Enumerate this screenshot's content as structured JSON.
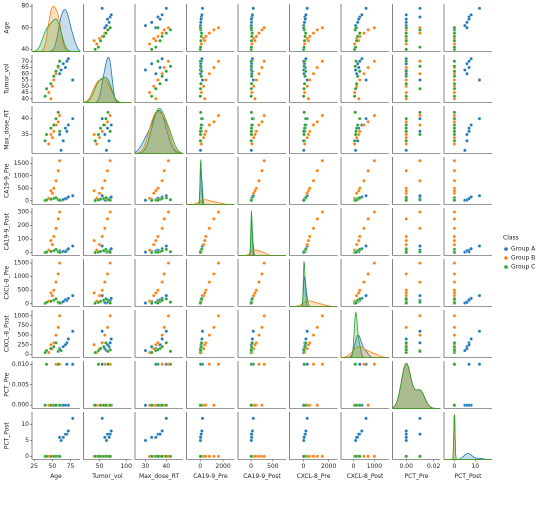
{
  "chart_data": {
    "type": "pairplot",
    "variables": [
      "Age",
      "Tumor_vol",
      "Max_dose_RT",
      "CA19-9_Pre",
      "CA19-9_Post",
      "CXCL-8_Pre",
      "CXCL-8_Post",
      "PCT_Pre",
      "PCT_Post"
    ],
    "axes": [
      {
        "xlim": [
          22,
          88
        ],
        "xticks": [
          25,
          50,
          75
        ],
        "ylim": [
          38,
          82
        ],
        "yticks": [
          40,
          60,
          80
        ]
      },
      {
        "xlim": [
          20,
          110
        ],
        "xticks": [
          50,
          100
        ],
        "ylim": [
          37,
          75
        ],
        "yticks": [
          40,
          45,
          50,
          55,
          60,
          65,
          70
        ]
      },
      {
        "xlim": [
          25,
          48
        ],
        "xticks": [
          30,
          40
        ],
        "ylim": [
          29,
          44
        ],
        "yticks": [
          35,
          40
        ]
      },
      {
        "xlim": [
          -1200,
          3000
        ],
        "xticks": [
          0,
          2000
        ],
        "ylim": [
          -150,
          1750
        ],
        "yticks": [
          0,
          500,
          1000,
          1500
        ]
      },
      {
        "xlim": [
          -300,
          800
        ],
        "xticks": [
          0,
          500
        ],
        "ylim": [
          -20,
          330
        ],
        "yticks": [
          0,
          100,
          200,
          300
        ]
      },
      {
        "xlim": [
          -1100,
          2700
        ],
        "xticks": [
          0,
          2000
        ],
        "ylim": [
          -100,
          1650
        ],
        "yticks": [
          0,
          500,
          1000,
          1500
        ]
      },
      {
        "xlim": [
          -600,
          1700
        ],
        "xticks": [
          0,
          1000
        ],
        "ylim": [
          -80,
          1150
        ],
        "yticks": [
          0,
          250,
          500,
          750,
          1000
        ]
      },
      {
        "xlim": [
          -0.01,
          0.025
        ],
        "xticks": [
          {
            "value": 0,
            "label": "0.00"
          },
          {
            "value": 0.02,
            "label": "0.02"
          }
        ],
        "ylim": [
          -0.0008,
          0.0108
        ],
        "yticks": [
          {
            "value": 0,
            "label": "0.000"
          },
          {
            "value": 0.005,
            "label": "0.005"
          },
          {
            "value": 0.01,
            "label": "0.010"
          }
        ]
      },
      {
        "xlim": [
          -5,
          18
        ],
        "xticks": [
          0,
          10
        ],
        "ylim": [
          -1,
          14
        ],
        "yticks": [
          0,
          5,
          10
        ]
      }
    ],
    "legend_title": "Class",
    "series": [
      {
        "name": "Group A",
        "color": "#1f77b4",
        "values": [
          [
            62,
            65,
            70,
            72,
            78,
            60,
            68
          ],
          [
            63,
            68,
            70,
            72,
            55,
            60,
            65
          ],
          [
            30,
            33,
            36,
            38,
            40,
            35,
            37
          ],
          [
            20,
            50,
            100,
            150,
            200,
            30,
            80
          ],
          [
            5,
            10,
            20,
            30,
            50,
            15,
            8
          ],
          [
            30,
            80,
            120,
            200,
            300,
            50,
            150
          ],
          [
            100,
            200,
            300,
            400,
            600,
            150,
            250
          ],
          [
            0,
            0,
            0.01,
            0,
            0.01,
            0,
            0
          ],
          [
            5,
            6,
            7,
            8,
            12,
            6,
            7
          ]
        ]
      },
      {
        "name": "Group B",
        "color": "#ff7f0e",
        "values": [
          [
            45,
            50,
            52,
            55,
            58,
            60,
            48
          ],
          [
            45,
            50,
            55,
            60,
            65,
            70,
            40
          ],
          [
            32,
            34,
            36,
            38,
            39,
            41,
            35
          ],
          [
            100,
            300,
            500,
            800,
            1200,
            1600,
            400
          ],
          [
            20,
            60,
            120,
            180,
            250,
            300,
            90
          ],
          [
            100,
            300,
            500,
            800,
            1100,
            1500,
            400
          ],
          [
            50,
            150,
            300,
            500,
            700,
            1000,
            250
          ],
          [
            0,
            0,
            0,
            0.01,
            0,
            0.01,
            0
          ],
          [
            0,
            0,
            0,
            0,
            0,
            0,
            0
          ]
        ]
      },
      {
        "name": "Group C",
        "color": "#2ca02c",
        "values": [
          [
            40,
            42,
            48,
            52,
            55,
            58,
            60
          ],
          [
            42,
            48,
            52,
            58,
            62,
            66,
            70
          ],
          [
            33,
            35,
            37,
            38,
            40,
            42,
            36
          ],
          [
            10,
            30,
            60,
            90,
            120,
            40,
            20
          ],
          [
            2,
            5,
            10,
            15,
            25,
            8,
            4
          ],
          [
            20,
            50,
            90,
            130,
            180,
            60,
            30
          ],
          [
            50,
            100,
            150,
            200,
            300,
            80,
            120
          ],
          [
            0,
            0.01,
            0,
            0,
            0,
            0.01,
            0
          ],
          [
            0,
            0,
            0,
            0,
            0,
            0,
            0
          ]
        ]
      }
    ]
  }
}
